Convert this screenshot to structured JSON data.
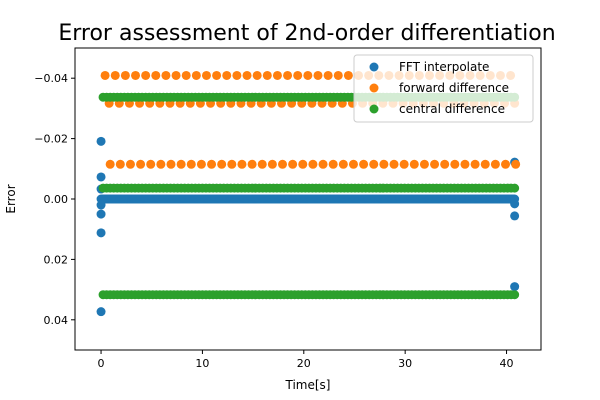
{
  "chart_data": {
    "type": "scatter",
    "title": "Error assessment of 2nd-order differentiation",
    "xlabel": "Time[s]",
    "ylabel": "Error",
    "xlim": [
      -2.57,
      43.4
    ],
    "ylim": [
      0.05,
      -0.05
    ],
    "y_inverted": true,
    "grid": false,
    "legend_position": "top-right",
    "x_ticks": [
      0,
      10,
      20,
      30,
      40
    ],
    "x_tick_labels": [
      "0",
      "10",
      "20",
      "30",
      "40"
    ],
    "y_ticks": [
      -0.04,
      -0.02,
      0.0,
      0.02,
      0.04
    ],
    "y_tick_labels": [
      "−0.04",
      "−0.02",
      "0.00",
      "0.02",
      "0.04"
    ],
    "series": [
      {
        "name": "FFT interpolate",
        "color": "#1f77b4",
        "rows": [
          {
            "y": 0.0,
            "x_start": 0.0,
            "x_end": 40.8,
            "x_step": 0.1
          }
        ],
        "points": [
          [
            0,
            -0.0191
          ],
          [
            0,
            -0.0073
          ],
          [
            0,
            -0.0033
          ],
          [
            0,
            0.002
          ],
          [
            0,
            0.005
          ],
          [
            0,
            0.0112
          ],
          [
            0,
            0.0373
          ],
          [
            40.8,
            -0.0122
          ],
          [
            40.8,
            0.0016
          ],
          [
            40.8,
            0.0056
          ],
          [
            40.8,
            0.029
          ]
        ]
      },
      {
        "name": "forward difference",
        "color": "#ff7f0e",
        "rows": [
          {
            "y": -0.0409,
            "x_start": 0.4,
            "x_end": 40.4,
            "x_step": 1
          },
          {
            "y": -0.0317,
            "x_start": 0.8,
            "x_end": 40.8,
            "x_step": 1
          },
          {
            "y": -0.0115,
            "x_start": 0.9,
            "x_end": 40.9,
            "x_step": 1
          }
        ],
        "points": []
      },
      {
        "name": "central difference",
        "color": "#2ca02c",
        "rows": [
          {
            "y": -0.0337,
            "x_start": 0.2,
            "x_end": 40.8,
            "x_step": 0.35
          },
          {
            "y": -0.0036,
            "x_start": 0.2,
            "x_end": 40.8,
            "x_step": 0.35
          },
          {
            "y": 0.0317,
            "x_start": 0.2,
            "x_end": 40.8,
            "x_step": 0.35
          }
        ],
        "points": []
      }
    ]
  }
}
